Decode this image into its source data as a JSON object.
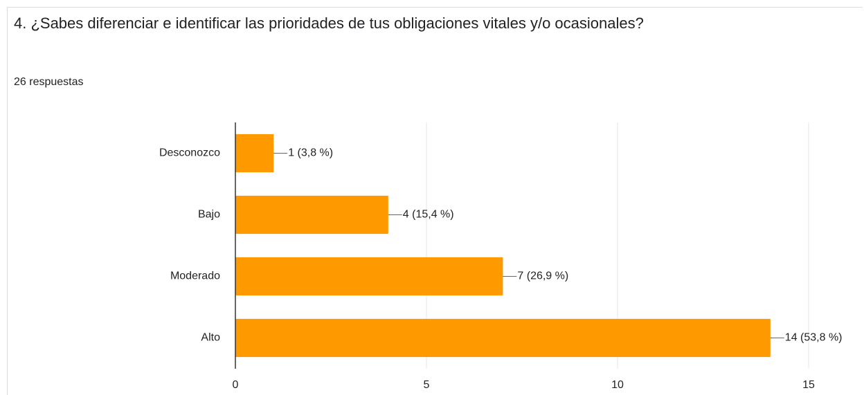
{
  "chart_data": {
    "type": "bar",
    "orientation": "horizontal",
    "title": "4. ¿Sabes diferenciar e identificar las prioridades de tus obligaciones vitales y/o ocasionales?",
    "subtitle": "26 respuestas",
    "categories": [
      "Desconozco",
      "Bajo",
      "Moderado",
      "Alto"
    ],
    "values": [
      1,
      4,
      7,
      14
    ],
    "value_labels": [
      "1 (3,8 %)",
      "4 (15,4 %)",
      "7 (26,9 %)",
      "14 (53,8 %)"
    ],
    "color": "#ff9900",
    "xlim": [
      0,
      15
    ],
    "xticks": [
      0,
      5,
      10,
      15
    ],
    "grid": true
  }
}
